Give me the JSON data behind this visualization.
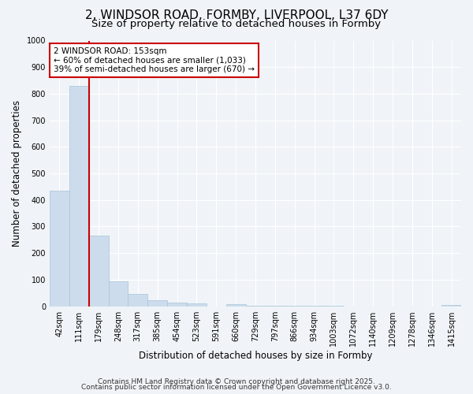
{
  "title_line1": "2, WINDSOR ROAD, FORMBY, LIVERPOOL, L37 6DY",
  "title_line2": "Size of property relative to detached houses in Formby",
  "xlabel": "Distribution of detached houses by size in Formby",
  "ylabel": "Number of detached properties",
  "bin_labels": [
    "42sqm",
    "111sqm",
    "179sqm",
    "248sqm",
    "317sqm",
    "385sqm",
    "454sqm",
    "523sqm",
    "591sqm",
    "660sqm",
    "729sqm",
    "797sqm",
    "866sqm",
    "934sqm",
    "1003sqm",
    "1072sqm",
    "1140sqm",
    "1209sqm",
    "1278sqm",
    "1346sqm",
    "1415sqm"
  ],
  "bar_values": [
    435,
    830,
    265,
    95,
    45,
    22,
    15,
    10,
    0,
    8,
    3,
    2,
    1,
    1,
    1,
    0,
    0,
    0,
    0,
    0,
    5
  ],
  "bar_color": "#ccdcec",
  "bar_edgecolor": "#a8c4d8",
  "vline_position": 1.5,
  "vline_color": "#cc0000",
  "ylim": [
    0,
    1000
  ],
  "yticks": [
    0,
    100,
    200,
    300,
    400,
    500,
    600,
    700,
    800,
    900,
    1000
  ],
  "annotation_box_text": "2 WINDSOR ROAD: 153sqm\n← 60% of detached houses are smaller (1,033)\n39% of semi-detached houses are larger (670) →",
  "annotation_box_facecolor": "#ffffff",
  "annotation_box_edgecolor": "#cc0000",
  "footnote1": "Contains HM Land Registry data © Crown copyright and database right 2025.",
  "footnote2": "Contains public sector information licensed under the Open Government Licence v3.0.",
  "background_color": "#f0f4f8",
  "plot_bg_color": "#f0f4f8",
  "grid_color": "#ffffff",
  "title_fontsize": 11,
  "subtitle_fontsize": 9.5,
  "axis_label_fontsize": 8.5,
  "tick_fontsize": 7,
  "annotation_fontsize": 7.5,
  "footnote_fontsize": 6.5
}
